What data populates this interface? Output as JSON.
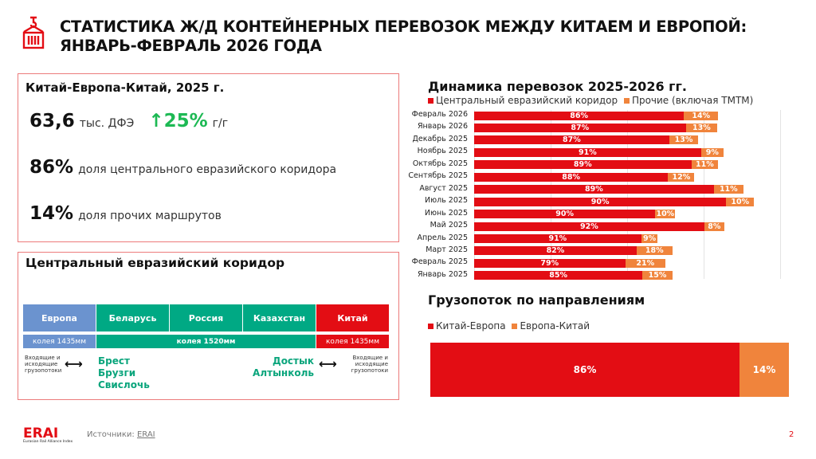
{
  "header": {
    "title_line1": "СТАТИСТИКА Ж/Д КОНТЕЙНЕРНЫХ ПЕРЕВОЗОК МЕЖДУ КИТАЕМ И ЕВРОПОЙ:",
    "title_line2": "ЯНВАРЬ-ФЕВРАЛЬ 2026 ГОДА",
    "icon": "container-crane-icon"
  },
  "summary": {
    "heading": "Китай-Европа-Китай, 2025 г.",
    "volume": "63,6",
    "volume_unit": "тыс. ДФЭ",
    "growth": "25%",
    "growth_unit": "г/г",
    "central_share": "86%",
    "central_label": "доля центрального евразийского коридора",
    "other_share": "14%",
    "other_label": "доля прочих маршрутов"
  },
  "corridor": {
    "heading": "Центральный евразийский коридор",
    "countries": [
      "Европа",
      "Беларусь",
      "Россия",
      "Казахстан",
      "Китай"
    ],
    "gauge_europe": "колея 1435мм",
    "gauge_mid": "колея 1520мм",
    "gauge_china": "колея 1435мм",
    "flows_left": "Входящие и исходящие грузопотоки",
    "flows_right": "Входящие и исходящие грузопотоки",
    "west_stations": [
      "Брест",
      "Брузги",
      "Свислочь"
    ],
    "east_stations": [
      "Достык",
      "Алтынколь"
    ]
  },
  "colors": {
    "red": "#e30d14",
    "orange": "#f0843c",
    "green": "#00a984",
    "blue": "#6b93cf",
    "growth": "#1db954"
  },
  "chart_data": [
    {
      "type": "bar",
      "orientation": "horizontal",
      "stacked": true,
      "title": "Динамика перевозок 2025-2026 гг.",
      "legend": [
        "Центральный евразийский коридор",
        "Прочие (включая ТМТМ)"
      ],
      "legend_position": "top",
      "grid": true,
      "categories": [
        "Февраль 2026",
        "Январь 2026",
        "Декабрь 2025",
        "Ноябрь 2025",
        "Октябрь 2025",
        "Сентябрь 2025",
        "Август 2025",
        "Июль 2025",
        "Июнь 2025",
        "Май 2025",
        "Апрель 2025",
        "Март 2025",
        "Февраль 2025",
        "Январь 2025"
      ],
      "relative_total": [
        3.19,
        3.18,
        2.93,
        3.26,
        3.19,
        2.88,
        3.52,
        3.66,
        2.63,
        3.27,
        2.4,
        2.59,
        2.5,
        2.59
      ],
      "series": [
        {
          "name": "Центральный евразийский коридор",
          "values": [
            86,
            87,
            87,
            91,
            89,
            88,
            89,
            90,
            90,
            92,
            91,
            82,
            79,
            85
          ]
        },
        {
          "name": "Прочие (включая ТМТМ)",
          "values": [
            14,
            13,
            13,
            9,
            11,
            12,
            11,
            10,
            10,
            8,
            9,
            18,
            21,
            15
          ]
        }
      ]
    },
    {
      "type": "bar",
      "orientation": "horizontal",
      "stacked": true,
      "title": "Грузопоток по направлениям",
      "legend": [
        "Китай-Европа",
        "Европа-Китай"
      ],
      "legend_position": "top",
      "series": [
        {
          "name": "Китай-Европа",
          "values": [
            86
          ]
        },
        {
          "name": "Европа-Китай",
          "values": [
            14
          ]
        }
      ]
    }
  ],
  "footer": {
    "logo": "ERAI",
    "logo_sub": "Eurasian Rail Alliance Index",
    "sources_label": "Источники:",
    "sources_link": "ERAI",
    "page": "2"
  }
}
